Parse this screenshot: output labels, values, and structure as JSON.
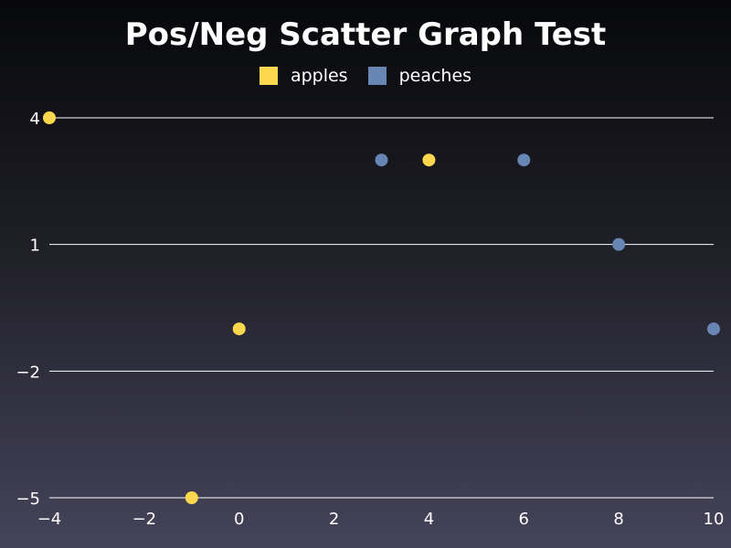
{
  "chart_data": {
    "type": "scatter",
    "title": "Pos/Neg Scatter Graph Test",
    "xlabel": "",
    "ylabel": "",
    "xlim": [
      -4,
      10
    ],
    "ylim": [
      -5,
      4
    ],
    "x_ticks": [
      -4,
      -2,
      0,
      2,
      4,
      6,
      8,
      10
    ],
    "y_ticks": [
      4,
      1,
      -2,
      -5
    ],
    "x_tick_labels": [
      "−4",
      "−2",
      "0",
      "2",
      "4",
      "6",
      "8",
      "10"
    ],
    "y_tick_labels": [
      "4",
      "1",
      "−2",
      "−5"
    ],
    "grid": "horizontal",
    "legend_position": "top-center",
    "series": [
      {
        "name": "apples",
        "color": "#fdd84e",
        "points": [
          {
            "x": -4,
            "y": 4
          },
          {
            "x": 4,
            "y": 3
          },
          {
            "x": 0,
            "y": -1
          },
          {
            "x": -1,
            "y": -5
          }
        ]
      },
      {
        "name": "peaches",
        "color": "#6886b4",
        "points": [
          {
            "x": 3,
            "y": 3
          },
          {
            "x": 6,
            "y": 3
          },
          {
            "x": 8,
            "y": 1
          },
          {
            "x": 10,
            "y": -1
          }
        ]
      }
    ]
  }
}
